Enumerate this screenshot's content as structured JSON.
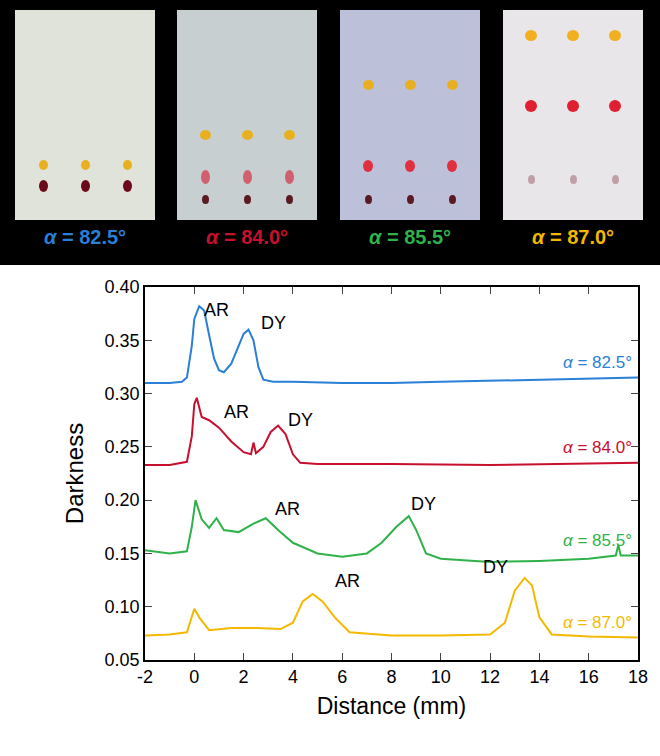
{
  "chart_data": {
    "type": "line",
    "x_label": "Distance (mm)",
    "y_label": "Darkness",
    "xlim": [
      -2,
      18
    ],
    "xticks": [
      -2,
      0,
      2,
      4,
      6,
      8,
      10,
      12,
      14,
      16,
      18
    ],
    "ylim": [
      0.05,
      0.4
    ],
    "yticks": [
      0.05,
      {
        "value": 0.1,
        "label": "0.10"
      },
      0.15,
      {
        "value": 0.2,
        "label": "0.20"
      },
      0.25,
      {
        "value": 0.3,
        "label": "0.30"
      },
      0.35,
      {
        "value": 0.4,
        "label": "0.40"
      }
    ],
    "grid": false,
    "series": [
      {
        "name": "α = 82.5°",
        "color": "#2a7fd6",
        "x": [
          -2,
          -1,
          -0.5,
          -0.3,
          -0.1,
          0,
          0.2,
          0.4,
          0.6,
          0.8,
          1.0,
          1.2,
          1.5,
          1.8,
          2.0,
          2.2,
          2.4,
          2.6,
          2.8,
          3.2,
          4,
          6,
          8,
          10,
          12,
          14,
          16,
          18
        ],
        "values": [
          0.31,
          0.31,
          0.311,
          0.315,
          0.345,
          0.37,
          0.382,
          0.378,
          0.355,
          0.333,
          0.322,
          0.32,
          0.328,
          0.345,
          0.356,
          0.36,
          0.35,
          0.325,
          0.313,
          0.311,
          0.311,
          0.31,
          0.31,
          0.311,
          0.312,
          0.313,
          0.314,
          0.315
        ]
      },
      {
        "name": "α = 84.0°",
        "color": "#c8102e",
        "x": [
          -2,
          -1,
          -0.3,
          -0.1,
          0,
          0.1,
          0.3,
          0.6,
          1.0,
          1.5,
          2.0,
          2.3,
          2.4,
          2.5,
          2.8,
          3.1,
          3.4,
          3.7,
          4.0,
          4.3,
          5,
          8,
          12,
          16,
          18
        ],
        "values": [
          0.233,
          0.233,
          0.236,
          0.26,
          0.29,
          0.296,
          0.278,
          0.275,
          0.268,
          0.255,
          0.245,
          0.243,
          0.254,
          0.244,
          0.25,
          0.264,
          0.27,
          0.262,
          0.243,
          0.235,
          0.234,
          0.234,
          0.233,
          0.234,
          0.235
        ]
      },
      {
        "name": "α = 85.5°",
        "color": "#2fb24a",
        "x": [
          -2,
          -1,
          -0.3,
          -0.1,
          0.05,
          0.3,
          0.6,
          0.9,
          1.2,
          1.8,
          2.4,
          2.9,
          3.4,
          4,
          5,
          6,
          7,
          7.6,
          8.2,
          8.7,
          9.0,
          9.4,
          10,
          12,
          14,
          16,
          17.1,
          17.2,
          17.3,
          18
        ],
        "values": [
          0.153,
          0.15,
          0.152,
          0.175,
          0.2,
          0.182,
          0.174,
          0.183,
          0.172,
          0.17,
          0.178,
          0.183,
          0.172,
          0.16,
          0.15,
          0.147,
          0.15,
          0.16,
          0.175,
          0.185,
          0.172,
          0.15,
          0.145,
          0.142,
          0.143,
          0.145,
          0.148,
          0.158,
          0.148,
          0.148
        ]
      },
      {
        "name": "α = 87.0°",
        "color": "#f5b800",
        "x": [
          -2,
          -1,
          -0.3,
          -0.1,
          0,
          0.2,
          0.6,
          1.5,
          2.5,
          3.5,
          4.0,
          4.4,
          4.8,
          5.2,
          5.7,
          6.3,
          8,
          10,
          12,
          12.6,
          13.0,
          13.4,
          13.7,
          14.0,
          14.5,
          16,
          18
        ],
        "values": [
          0.073,
          0.074,
          0.076,
          0.09,
          0.098,
          0.09,
          0.078,
          0.08,
          0.08,
          0.079,
          0.085,
          0.105,
          0.112,
          0.105,
          0.09,
          0.076,
          0.073,
          0.073,
          0.074,
          0.085,
          0.115,
          0.127,
          0.12,
          0.09,
          0.074,
          0.072,
          0.071
        ]
      }
    ],
    "annotations": [
      {
        "text": "AR",
        "x": 0.9,
        "y": 0.378
      },
      {
        "text": "DY",
        "x": 3.2,
        "y": 0.366
      },
      {
        "text": "AR",
        "x": 1.7,
        "y": 0.283
      },
      {
        "text": "DY",
        "x": 4.3,
        "y": 0.275
      },
      {
        "text": "AR",
        "x": 3.8,
        "y": 0.192
      },
      {
        "text": "DY",
        "x": 9.3,
        "y": 0.196
      },
      {
        "text": "AR",
        "x": 6.2,
        "y": 0.124
      },
      {
        "text": "DY",
        "x": 12.2,
        "y": 0.137
      }
    ]
  }
}
